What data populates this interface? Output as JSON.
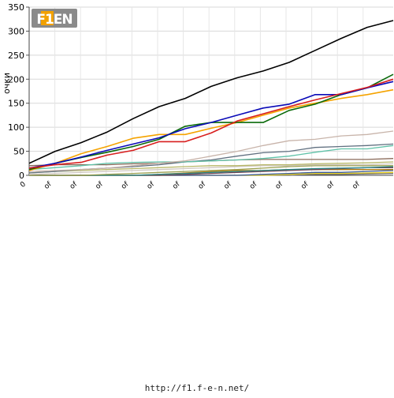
{
  "logo": {
    "text": "F1EN",
    "colors": {
      "frame": "#8a8a8a",
      "accent": "#f2a100",
      "text": "#ffffff"
    }
  },
  "footer": {
    "url": "http://f1.f-e-n.net/"
  },
  "chart_data": {
    "type": "line",
    "title": "",
    "xlabel": "",
    "ylabel": "очки",
    "ylim": [
      0,
      350
    ],
    "yticks": [
      0,
      50,
      100,
      150,
      200,
      250,
      300,
      350
    ],
    "x_tick_labels": [
      "0",
      "of",
      "of",
      "of",
      "of",
      "of",
      "of",
      "of",
      "of",
      "of",
      "of",
      "of",
      "of",
      "of"
    ],
    "grid": true,
    "legend": "none",
    "x": [
      0,
      1,
      2,
      3,
      4,
      5,
      6,
      7,
      8,
      9,
      10,
      11,
      12,
      13,
      14
    ],
    "series": [
      {
        "color": "#000000",
        "values": [
          25,
          50,
          68,
          90,
          118,
          143,
          160,
          185,
          203,
          217,
          235,
          260,
          285,
          308,
          322
        ]
      },
      {
        "color": "#d81e1e",
        "values": [
          15,
          22,
          27,
          42,
          52,
          70,
          70,
          88,
          113,
          128,
          143,
          157,
          170,
          183,
          200
        ]
      },
      {
        "color": "#0a0ab8",
        "values": [
          15,
          25,
          38,
          52,
          65,
          78,
          97,
          110,
          125,
          140,
          148,
          168,
          168,
          182,
          195
        ]
      },
      {
        "color": "#0a6a0a",
        "values": [
          12,
          25,
          37,
          48,
          60,
          75,
          102,
          110,
          110,
          110,
          135,
          148,
          168,
          182,
          210
        ]
      },
      {
        "color": "#f5a300",
        "values": [
          10,
          25,
          45,
          60,
          77,
          85,
          85,
          98,
          110,
          125,
          140,
          150,
          160,
          168,
          178
        ]
      },
      {
        "color": "#c8b4aa",
        "values": [
          8,
          10,
          12,
          15,
          20,
          25,
          30,
          40,
          50,
          62,
          72,
          75,
          82,
          85,
          92
        ]
      },
      {
        "color": "#5fc2a8",
        "values": [
          12,
          16,
          20,
          25,
          27,
          28,
          28,
          30,
          32,
          35,
          40,
          48,
          55,
          55,
          62
        ]
      },
      {
        "color": "#607080",
        "values": [
          5,
          8,
          12,
          15,
          18,
          22,
          28,
          32,
          40,
          47,
          50,
          58,
          60,
          62,
          65
        ]
      },
      {
        "color": "#8a6a5a",
        "values": [
          20,
          22,
          22,
          22,
          24,
          25,
          28,
          30,
          32,
          33,
          33,
          33,
          33,
          33,
          35
        ]
      },
      {
        "color": "#b8b868",
        "values": [
          5,
          8,
          10,
          12,
          14,
          16,
          18,
          20,
          20,
          22,
          22,
          24,
          25,
          26,
          28
        ]
      },
      {
        "color": "#d0c8c0",
        "values": [
          2,
          4,
          6,
          8,
          10,
          12,
          14,
          16,
          18,
          20,
          20,
          22,
          22,
          22,
          24
        ]
      },
      {
        "color": "#9aa050",
        "values": [
          0,
          0,
          0,
          2,
          4,
          6,
          8,
          10,
          12,
          15,
          18,
          20,
          20,
          20,
          20
        ]
      },
      {
        "color": "#2a8a8a",
        "values": [
          0,
          0,
          0,
          0,
          0,
          2,
          4,
          6,
          8,
          10,
          12,
          14,
          15,
          16,
          18
        ]
      },
      {
        "color": "#704050",
        "values": [
          0,
          0,
          0,
          0,
          0,
          0,
          2,
          4,
          6,
          8,
          10,
          12,
          14,
          16,
          16
        ]
      },
      {
        "color": "#b07a10",
        "values": [
          0,
          0,
          0,
          0,
          0,
          2,
          5,
          8,
          10,
          10,
          12,
          12,
          12,
          12,
          12
        ]
      },
      {
        "color": "#3a5a9a",
        "values": [
          0,
          0,
          0,
          0,
          0,
          0,
          0,
          0,
          0,
          2,
          4,
          6,
          6,
          8,
          10
        ]
      },
      {
        "color": "#e8d020",
        "values": [
          0,
          0,
          0,
          0,
          0,
          0,
          0,
          0,
          0,
          0,
          2,
          4,
          4,
          5,
          6
        ]
      },
      {
        "color": "#6a6a6a",
        "values": [
          0,
          0,
          0,
          0,
          0,
          0,
          0,
          0,
          0,
          0,
          0,
          2,
          2,
          3,
          4
        ]
      }
    ]
  }
}
